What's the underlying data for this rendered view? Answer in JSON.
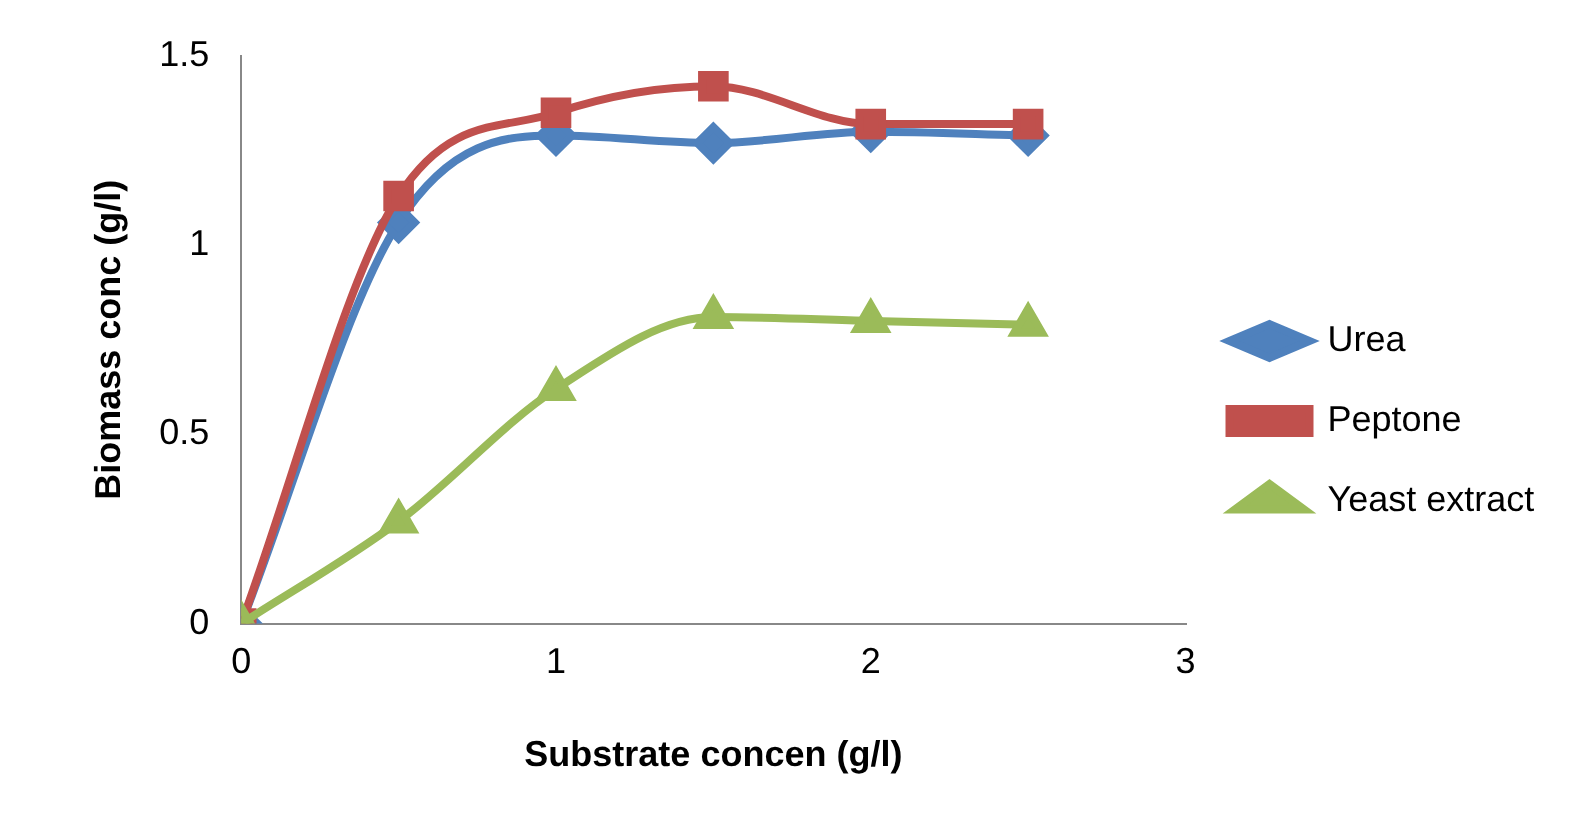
{
  "chart_data": {
    "type": "line",
    "xlabel": "Substrate concen (g/l)",
    "ylabel": "Biomass conc (g/l)",
    "x": [
      0,
      0.5,
      1,
      1.5,
      2,
      2.5
    ],
    "xlim": [
      0,
      3
    ],
    "xticks": [
      0,
      1,
      2,
      3
    ],
    "ylim": [
      0,
      1.5
    ],
    "yticks": [
      0,
      0.5,
      1,
      1.5
    ],
    "grid": false,
    "legend": "right",
    "line_style": "solid",
    "series": [
      {
        "name": "Urea",
        "color": "#4f81bd",
        "marker": "diamond",
        "values": [
          0,
          1.06,
          1.29,
          1.27,
          1.3,
          1.29
        ]
      },
      {
        "name": "Peptone",
        "color": "#c0504d",
        "marker": "square",
        "values": [
          0,
          1.13,
          1.35,
          1.42,
          1.32,
          1.32
        ]
      },
      {
        "name": "Yeast extract",
        "color": "#9bbb59",
        "marker": "triangle",
        "values": [
          0,
          0.27,
          0.62,
          0.81,
          0.8,
          0.79
        ]
      }
    ]
  }
}
